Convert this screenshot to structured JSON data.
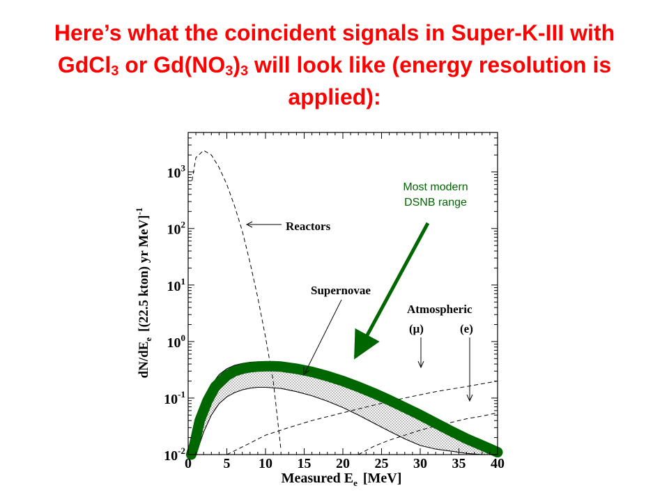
{
  "slide": {
    "title_part1": "Here’s what the coincident signals in Super-K-III with GdCl",
    "title_sub1": "3",
    "title_part2": " or Gd(NO",
    "title_sub2": "3",
    "title_part3": ")",
    "title_sub3": "3",
    "title_part4": " will look like (energy resolution is applied):"
  },
  "annotation": {
    "line1": "Most modern",
    "line2": "DSNB range"
  },
  "colors": {
    "title": "#ff0000",
    "annotation": "#006600",
    "dsnb_band": "#006600",
    "curves": "#000000"
  },
  "chart_data": {
    "type": "line",
    "xlabel": "Measured E",
    "xlabel_sub": "e",
    "xlabel_unit": "[MeV]",
    "ylabel": "dN/dE",
    "ylabel_sub": "e",
    "ylabel_unit": "[(22.5 kton) yr MeV]",
    "ylabel_sup": "-1",
    "xlim": [
      0,
      40
    ],
    "ylim": [
      0.01,
      5000
    ],
    "yscale": "log",
    "x_ticks": [
      "0",
      "5",
      "10",
      "15",
      "20",
      "25",
      "30",
      "35",
      "40"
    ],
    "y_ticks": [
      {
        "base": "10",
        "exp": "-2",
        "value": 0.01
      },
      {
        "base": "10",
        "exp": "-1",
        "value": 0.1
      },
      {
        "base": "10",
        "exp": "0",
        "value": 1
      },
      {
        "base": "10",
        "exp": "1",
        "value": 10
      },
      {
        "base": "10",
        "exp": "2",
        "value": 100
      },
      {
        "base": "10",
        "exp": "3",
        "value": 1000
      }
    ],
    "labels": {
      "reactors": "Reactors",
      "supernovae": "Supernovae",
      "atmospheric": "Atmospheric",
      "mu": "(μ)",
      "e": "(e)"
    },
    "series": [
      {
        "name": "Reactors",
        "style": "dashed",
        "x": [
          0.5,
          1,
          2,
          3,
          4,
          5,
          6,
          7,
          8,
          9,
          10,
          11,
          11.5,
          12
        ],
        "y": [
          700,
          1800,
          2400,
          2000,
          1200,
          600,
          250,
          90,
          25,
          6,
          1.2,
          0.2,
          0.05,
          0.012
        ]
      },
      {
        "name": "Supernovae upper",
        "style": "solid",
        "x": [
          0.5,
          1,
          2,
          3,
          4,
          5,
          6,
          7,
          8,
          9,
          10,
          12,
          14,
          16,
          18,
          20,
          22,
          24,
          26,
          28,
          30,
          32,
          34,
          36,
          38,
          40
        ],
        "y": [
          0.012,
          0.025,
          0.08,
          0.17,
          0.26,
          0.33,
          0.38,
          0.41,
          0.43,
          0.44,
          0.44,
          0.42,
          0.38,
          0.33,
          0.28,
          0.23,
          0.18,
          0.14,
          0.105,
          0.078,
          0.057,
          0.041,
          0.029,
          0.02,
          0.014,
          0.01
        ]
      },
      {
        "name": "Supernovae lower",
        "style": "solid",
        "x": [
          1,
          2,
          3,
          4,
          5,
          6,
          7,
          8,
          9,
          10,
          12,
          14,
          16,
          18,
          20,
          22,
          24,
          26,
          28,
          30,
          32,
          34,
          36,
          38
        ],
        "y": [
          0.01,
          0.025,
          0.05,
          0.08,
          0.105,
          0.125,
          0.14,
          0.15,
          0.155,
          0.155,
          0.148,
          0.13,
          0.11,
          0.088,
          0.068,
          0.05,
          0.036,
          0.026,
          0.019,
          0.0145,
          0.0125,
          0.0115,
          0.0105,
          0.01
        ]
      },
      {
        "name": "Atmospheric (μ)",
        "style": "dashed",
        "x": [
          5,
          8,
          10,
          13,
          16,
          20,
          24,
          28,
          32,
          36,
          40
        ],
        "y": [
          0.01,
          0.016,
          0.022,
          0.03,
          0.04,
          0.055,
          0.075,
          0.1,
          0.13,
          0.16,
          0.2
        ]
      },
      {
        "name": "Atmospheric (e)",
        "style": "dashed",
        "x": [
          22,
          24,
          26,
          28,
          30,
          32,
          34,
          36,
          38,
          40
        ],
        "y": [
          0.01,
          0.014,
          0.018,
          0.022,
          0.027,
          0.032,
          0.037,
          0.043,
          0.048,
          0.055
        ]
      },
      {
        "name": "Most modern DSNB range",
        "style": "thick-green",
        "x": [
          0.4,
          0.8,
          1.5,
          2.5,
          3.5,
          5,
          6,
          7,
          8,
          9,
          10,
          11,
          12,
          14,
          16,
          18,
          20,
          22,
          24,
          26,
          28,
          30,
          32,
          34,
          36,
          38,
          40
        ],
        "y": [
          0.01,
          0.015,
          0.04,
          0.09,
          0.16,
          0.25,
          0.3,
          0.33,
          0.35,
          0.36,
          0.365,
          0.365,
          0.36,
          0.33,
          0.29,
          0.245,
          0.2,
          0.158,
          0.122,
          0.092,
          0.068,
          0.05,
          0.036,
          0.026,
          0.019,
          0.0145,
          0.011
        ]
      }
    ]
  }
}
